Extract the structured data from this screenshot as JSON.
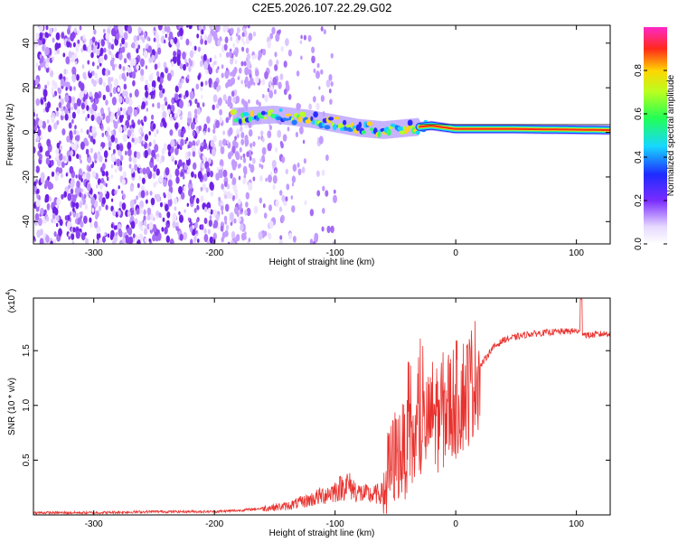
{
  "chart_data": [
    {
      "type": "heatmap",
      "title": "C2E5.2026.107.22.29.G02",
      "xlabel": "Height of straight line (km)",
      "ylabel": "Frequency (Hz)",
      "xlim": [
        -350,
        128
      ],
      "ylim": [
        -50,
        48
      ],
      "xticks": [
        -300,
        -200,
        -100,
        0,
        100
      ],
      "yticks": [
        -40,
        -20,
        0,
        20,
        40
      ],
      "colorbar": {
        "label": "Normalized spectral amplitude",
        "range": [
          0,
          1
        ],
        "ticks": [
          "0.0",
          "0.2",
          "0.4",
          "0.6",
          "0.8"
        ],
        "tick_values": [
          0,
          0.2,
          0.4,
          0.6,
          0.8
        ]
      },
      "signal_track": {
        "description_points": [
          {
            "x": -185,
            "f": 7
          },
          {
            "x": -150,
            "f": 8
          },
          {
            "x": -120,
            "f": 6
          },
          {
            "x": -100,
            "f": 4
          },
          {
            "x": -80,
            "f": 2
          },
          {
            "x": -60,
            "f": 1
          },
          {
            "x": -40,
            "f": 2
          },
          {
            "x": -20,
            "f": 3
          },
          {
            "x": 0,
            "f": 1.5
          },
          {
            "x": 50,
            "f": 1.5
          },
          {
            "x": 100,
            "f": 1.2
          },
          {
            "x": 128,
            "f": 1.0
          }
        ],
        "noise_region_x": [
          -350,
          -140
        ]
      }
    },
    {
      "type": "line",
      "xlabel": "Height of straight line (km)",
      "ylabel": "SNR (10 * v/v)",
      "scale_label": "(x10",
      "scale_exponent": "4",
      "scale_close": ")",
      "xlim": [
        -350,
        128
      ],
      "ylim": [
        0,
        1.98
      ],
      "xticks": [
        -300,
        -200,
        -100,
        0,
        100
      ],
      "yticks": [
        0.5,
        1.0,
        1.5
      ],
      "ytick_labels": [
        "0.5",
        "1.0",
        "1.5"
      ],
      "color": "#e8322e",
      "series": [
        {
          "name": "SNR",
          "x": [
            -350,
            -300,
            -250,
            -200,
            -180,
            -160,
            -140,
            -120,
            -100,
            -90,
            -80,
            -70,
            -60,
            -50,
            -40,
            -30,
            -20,
            -10,
            0,
            10,
            20,
            30,
            40,
            60,
            80,
            100,
            110,
            128
          ],
          "y": [
            0.02,
            0.02,
            0.03,
            0.03,
            0.04,
            0.06,
            0.08,
            0.14,
            0.22,
            0.28,
            0.2,
            0.18,
            0.2,
            0.55,
            0.6,
            0.7,
            0.9,
            0.95,
            1.05,
            1.15,
            1.35,
            1.52,
            1.6,
            1.65,
            1.67,
            1.68,
            1.64,
            1.66
          ]
        }
      ]
    }
  ]
}
